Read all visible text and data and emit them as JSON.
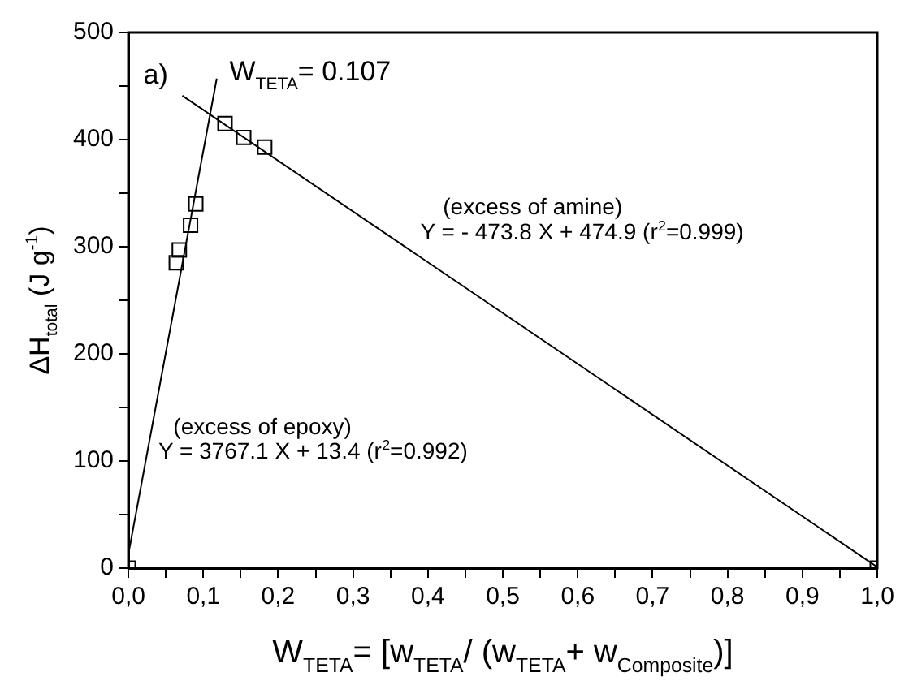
{
  "chart_data": {
    "type": "scatter",
    "xlabel": "W$_{TETA}$= [w$_{TETA}$/ (w$_{TETA}$+ w$_{Composite}$)]",
    "ylabel": "ΔH$_{total}$ (J g$^{-1}$)",
    "xlim": [
      0,
      1
    ],
    "ylim": [
      0,
      500
    ],
    "xticks": [
      {
        "value": 0,
        "label": "0,0"
      },
      {
        "value": 0.05,
        "label": null
      },
      {
        "value": 0.1,
        "label": "0,1"
      },
      {
        "value": 0.15,
        "label": null
      },
      {
        "value": 0.2,
        "label": "0,2"
      },
      {
        "value": 0.25,
        "label": null
      },
      {
        "value": 0.3,
        "label": "0,3"
      },
      {
        "value": 0.35,
        "label": null
      },
      {
        "value": 0.4,
        "label": "0,4"
      },
      {
        "value": 0.45,
        "label": null
      },
      {
        "value": 0.5,
        "label": "0,5"
      },
      {
        "value": 0.55,
        "label": null
      },
      {
        "value": 0.6,
        "label": "0,6"
      },
      {
        "value": 0.65,
        "label": null
      },
      {
        "value": 0.7,
        "label": "0,7"
      },
      {
        "value": 0.75,
        "label": null
      },
      {
        "value": 0.8,
        "label": "0,8"
      },
      {
        "value": 0.85,
        "label": null
      },
      {
        "value": 0.9,
        "label": "0,9"
      },
      {
        "value": 0.95,
        "label": null
      },
      {
        "value": 1,
        "label": "1,0"
      }
    ],
    "yticks": [
      0,
      {
        "value": 50,
        "label": null
      },
      100,
      {
        "value": 150,
        "label": null
      },
      200,
      {
        "value": 250,
        "label": null
      },
      300,
      {
        "value": 350,
        "label": null
      },
      400,
      {
        "value": 450,
        "label": null
      },
      500
    ],
    "grid": false,
    "legend": false,
    "series": [
      {
        "marker": "square",
        "color": "#000000",
        "x": [
          0,
          0.064,
          0.068,
          0.083,
          0.09,
          0.129,
          0.154,
          0.182,
          1
        ],
        "values": [
          0,
          285,
          297,
          320,
          340,
          415,
          402,
          393,
          0
        ]
      },
      {
        "type": "line",
        "marker": "none",
        "line_style": "solid",
        "color": "#000000",
        "x": [
          0,
          0.118
        ],
        "values": [
          13,
          457
        ]
      },
      {
        "type": "line",
        "marker": "none",
        "line_style": "solid",
        "color": "#000000",
        "x": [
          0.072,
          1
        ],
        "values": [
          441,
          1
        ]
      }
    ],
    "annotations": [
      "a)",
      "W$_{TETA}$= 0.107",
      "(excess of amine)",
      "Y = - 473.8 X + 474.9 (r$^{2}$=0.999)",
      "(excess of epoxy)",
      "Y = 3767.1 X + 13.4 (r$^{2}$=0.992)"
    ]
  }
}
